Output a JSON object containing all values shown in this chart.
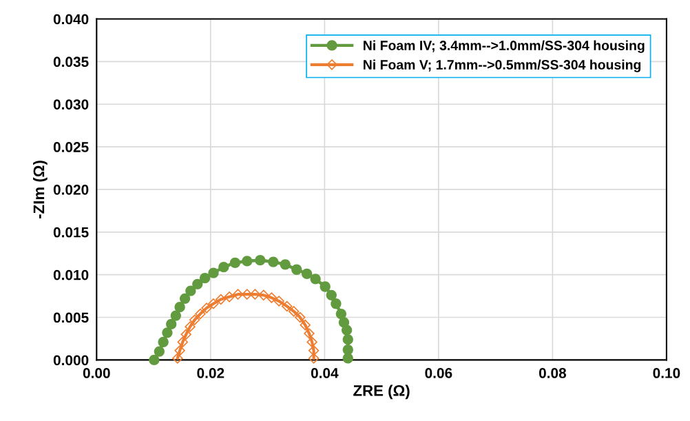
{
  "chart_data": {
    "type": "line",
    "xlabel": "ZRE (Ω)",
    "ylabel": "-ZIm (Ω)",
    "xlim": [
      0,
      0.1
    ],
    "xticks": [
      {
        "value": 0,
        "label": "0.00"
      },
      {
        "value": 0.02,
        "label": "0.02"
      },
      {
        "value": 0.04,
        "label": "0.04"
      },
      {
        "value": 0.06,
        "label": "0.06"
      },
      {
        "value": 0.08,
        "label": "0.08"
      },
      {
        "value": 0.1,
        "label": "0.10"
      }
    ],
    "ylim": [
      0,
      0.04
    ],
    "yticks": [
      {
        "value": 0,
        "label": "0.000"
      },
      {
        "value": 0.005,
        "label": "0.005"
      },
      {
        "value": 0.01,
        "label": "0.010"
      },
      {
        "value": 0.015,
        "label": "0.015"
      },
      {
        "value": 0.02,
        "label": "0.020"
      },
      {
        "value": 0.025,
        "label": "0.025"
      },
      {
        "value": 0.03,
        "label": "0.030"
      },
      {
        "value": 0.035,
        "label": "0.035"
      },
      {
        "value": 0.04,
        "label": "0.040"
      }
    ],
    "grid": true,
    "legend": "top right",
    "line_style": "solid",
    "series": [
      {
        "name": "Ni Foam IV; 3.4mm-->1.0mm/SS-304 housing",
        "color": "#629b3f",
        "marker": "circle",
        "x": [
          0.0101,
          0.011,
          0.0117,
          0.0124,
          0.0131,
          0.0139,
          0.0146,
          0.0155,
          0.0165,
          0.0177,
          0.019,
          0.0205,
          0.0223,
          0.0243,
          0.0264,
          0.0287,
          0.031,
          0.0331,
          0.0351,
          0.0369,
          0.0384,
          0.0401,
          0.0412,
          0.042,
          0.0429,
          0.0434,
          0.0439,
          0.0441,
          0.0441,
          0.0441
        ],
        "values": [
          0.0,
          0.001,
          0.0021,
          0.0032,
          0.0042,
          0.0052,
          0.0062,
          0.0072,
          0.0081,
          0.0089,
          0.0096,
          0.0102,
          0.0109,
          0.0114,
          0.0116,
          0.0117,
          0.0115,
          0.0112,
          0.0106,
          0.0101,
          0.0095,
          0.0086,
          0.0076,
          0.0066,
          0.0054,
          0.0044,
          0.0035,
          0.0024,
          0.0012,
          0.0002
        ]
      },
      {
        "name": "Ni Foam V; 1.7mm-->0.5mm/SS-304 housing",
        "color": "#ed7d31",
        "marker": "diamond",
        "x": [
          0.0142,
          0.0146,
          0.0151,
          0.0157,
          0.0164,
          0.0172,
          0.0182,
          0.0193,
          0.0205,
          0.0218,
          0.0233,
          0.0248,
          0.0264,
          0.0278,
          0.0293,
          0.0307,
          0.032,
          0.0334,
          0.0346,
          0.0357,
          0.0366,
          0.0373,
          0.0378,
          0.0381,
          0.0381
        ],
        "values": [
          0.0002,
          0.0011,
          0.0021,
          0.003,
          0.0039,
          0.0047,
          0.0054,
          0.0061,
          0.0066,
          0.0071,
          0.0074,
          0.0077,
          0.0077,
          0.0077,
          0.0076,
          0.0073,
          0.0069,
          0.0063,
          0.0057,
          0.005,
          0.0041,
          0.0031,
          0.0021,
          0.0011,
          0.0002
        ]
      }
    ]
  }
}
